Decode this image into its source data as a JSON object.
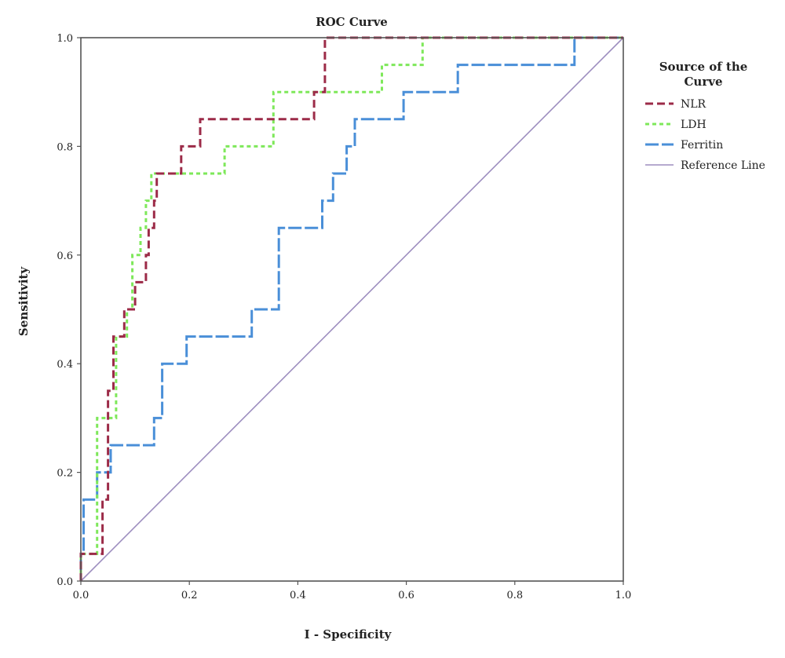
{
  "chart_data": {
    "type": "line",
    "title": "ROC Curve",
    "xlabel": "I - Specificity",
    "ylabel": "Sensitivity",
    "xlim": [
      0,
      1
    ],
    "ylim": [
      0,
      1
    ],
    "xticks": [
      "0.0",
      "0.2",
      "0.4",
      "0.6",
      "0.8",
      "1.0"
    ],
    "yticks": [
      "0.0",
      "0.2",
      "0.4",
      "0.6",
      "0.8",
      "1.0"
    ],
    "grid": false,
    "legend": {
      "title": "Source of the Curve",
      "placement": "right"
    },
    "series": [
      {
        "name": "NLR",
        "color": "#9c2b48",
        "dash": "dashed",
        "points": [
          [
            0,
            0
          ],
          [
            0,
            0.05
          ],
          [
            0.04,
            0.05
          ],
          [
            0.04,
            0.15
          ],
          [
            0.05,
            0.15
          ],
          [
            0.05,
            0.35
          ],
          [
            0.06,
            0.35
          ],
          [
            0.06,
            0.45
          ],
          [
            0.08,
            0.45
          ],
          [
            0.08,
            0.5
          ],
          [
            0.1,
            0.5
          ],
          [
            0.1,
            0.55
          ],
          [
            0.12,
            0.55
          ],
          [
            0.12,
            0.6
          ],
          [
            0.125,
            0.6
          ],
          [
            0.125,
            0.65
          ],
          [
            0.135,
            0.65
          ],
          [
            0.135,
            0.7
          ],
          [
            0.14,
            0.7
          ],
          [
            0.14,
            0.75
          ],
          [
            0.185,
            0.75
          ],
          [
            0.185,
            0.8
          ],
          [
            0.22,
            0.8
          ],
          [
            0.22,
            0.85
          ],
          [
            0.43,
            0.85
          ],
          [
            0.43,
            0.9
          ],
          [
            0.45,
            0.9
          ],
          [
            0.45,
            1.0
          ],
          [
            1.0,
            1.0
          ]
        ]
      },
      {
        "name": "LDH",
        "color": "#7ee85a",
        "dash": "dotted",
        "points": [
          [
            0,
            0
          ],
          [
            0,
            0.05
          ],
          [
            0.03,
            0.05
          ],
          [
            0.03,
            0.3
          ],
          [
            0.065,
            0.3
          ],
          [
            0.065,
            0.45
          ],
          [
            0.085,
            0.45
          ],
          [
            0.085,
            0.5
          ],
          [
            0.095,
            0.5
          ],
          [
            0.095,
            0.6
          ],
          [
            0.11,
            0.6
          ],
          [
            0.11,
            0.65
          ],
          [
            0.12,
            0.65
          ],
          [
            0.12,
            0.7
          ],
          [
            0.13,
            0.7
          ],
          [
            0.13,
            0.75
          ],
          [
            0.265,
            0.75
          ],
          [
            0.265,
            0.8
          ],
          [
            0.355,
            0.8
          ],
          [
            0.355,
            0.9
          ],
          [
            0.555,
            0.9
          ],
          [
            0.555,
            0.95
          ],
          [
            0.63,
            0.95
          ],
          [
            0.63,
            1.0
          ],
          [
            1.0,
            1.0
          ]
        ]
      },
      {
        "name": "Ferritin",
        "color": "#4a8fd8",
        "dash": "long-dash",
        "points": [
          [
            0,
            0
          ],
          [
            0,
            0.05
          ],
          [
            0.005,
            0.05
          ],
          [
            0.005,
            0.15
          ],
          [
            0.03,
            0.15
          ],
          [
            0.03,
            0.2
          ],
          [
            0.055,
            0.2
          ],
          [
            0.055,
            0.25
          ],
          [
            0.135,
            0.25
          ],
          [
            0.135,
            0.3
          ],
          [
            0.15,
            0.3
          ],
          [
            0.15,
            0.4
          ],
          [
            0.195,
            0.4
          ],
          [
            0.195,
            0.45
          ],
          [
            0.315,
            0.45
          ],
          [
            0.315,
            0.5
          ],
          [
            0.365,
            0.5
          ],
          [
            0.365,
            0.65
          ],
          [
            0.445,
            0.65
          ],
          [
            0.445,
            0.7
          ],
          [
            0.465,
            0.7
          ],
          [
            0.465,
            0.75
          ],
          [
            0.49,
            0.75
          ],
          [
            0.49,
            0.8
          ],
          [
            0.505,
            0.8
          ],
          [
            0.505,
            0.85
          ],
          [
            0.595,
            0.85
          ],
          [
            0.595,
            0.9
          ],
          [
            0.695,
            0.9
          ],
          [
            0.695,
            0.95
          ],
          [
            0.91,
            0.95
          ],
          [
            0.91,
            1.0
          ],
          [
            1.0,
            1.0
          ]
        ]
      },
      {
        "name": "Reference Line",
        "color": "#9d8ebf",
        "dash": "solid",
        "points": [
          [
            0,
            0
          ],
          [
            1,
            1
          ]
        ]
      }
    ]
  }
}
